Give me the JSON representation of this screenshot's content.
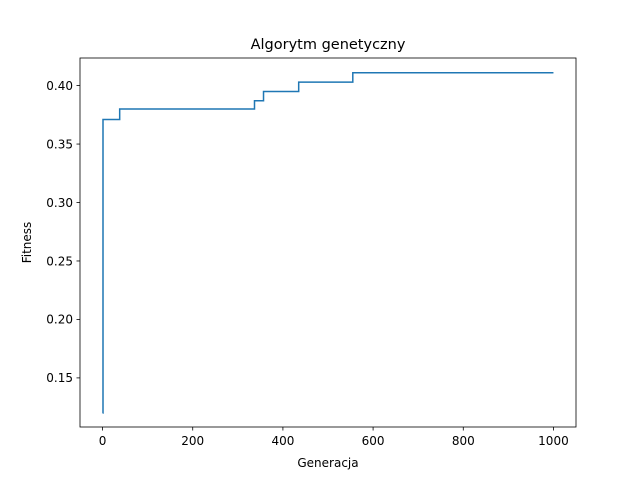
{
  "chart_data": {
    "type": "line",
    "title": "Algorytm genetyczny",
    "xlabel": "Generacja",
    "ylabel": "Fitness",
    "xlim": [
      -50,
      1050
    ],
    "ylim": [
      0.108,
      0.4236
    ],
    "xticks": [
      0,
      200,
      400,
      600,
      800,
      1000
    ],
    "xtick_labels": [
      "0",
      "200",
      "400",
      "600",
      "800",
      "1000"
    ],
    "yticks": [
      0.15,
      0.2,
      0.25,
      0.3,
      0.35,
      0.4
    ],
    "ytick_labels": [
      "0.15",
      "0.20",
      "0.25",
      "0.30",
      "0.35",
      "0.40"
    ],
    "grid": false,
    "line_color": "#1f77b4",
    "series": [
      {
        "step": "post",
        "x": [
          0,
          1,
          38,
          337,
          357,
          435,
          555,
          1000
        ],
        "y": [
          0.12,
          0.371,
          0.38,
          0.387,
          0.395,
          0.403,
          0.411,
          0.411
        ]
      }
    ]
  }
}
